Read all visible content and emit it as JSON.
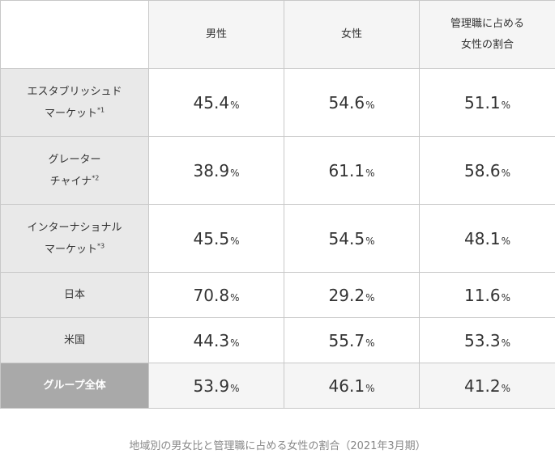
{
  "table": {
    "headers": {
      "corner": "",
      "male": "男性",
      "female": "女性",
      "female_manager_ratio_line1": "管理職に占める",
      "female_manager_ratio_line2": "女性の割合"
    },
    "unit": "%",
    "rows": [
      {
        "label_line1": "エスタブリッシュド",
        "label_line2": "マーケット",
        "note": "*1",
        "male": "45.4",
        "female": "54.6",
        "ratio": "51.1"
      },
      {
        "label_line1": "グレーター",
        "label_line2": "チャイナ",
        "note": "*2",
        "male": "38.9",
        "female": "61.1",
        "ratio": "58.6"
      },
      {
        "label_line1": "インターナショナル",
        "label_line2": "マーケット",
        "note": "*3",
        "male": "45.5",
        "female": "54.5",
        "ratio": "48.1"
      },
      {
        "label_line1": "日本",
        "male": "70.8",
        "female": "29.2",
        "ratio": "11.6"
      },
      {
        "label_line1": "米国",
        "male": "44.3",
        "female": "55.7",
        "ratio": "53.3"
      },
      {
        "label_line1": "グループ全体",
        "male": "53.9",
        "female": "46.1",
        "ratio": "41.2"
      }
    ]
  },
  "caption": "地域別の男女比と管理職に占める女性の割合（2021年3月期）"
}
